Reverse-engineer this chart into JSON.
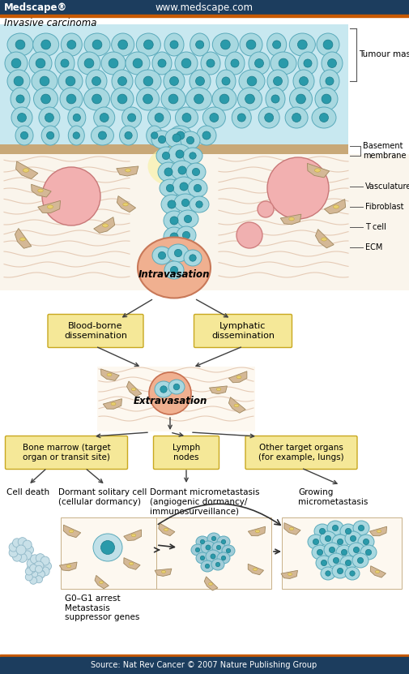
{
  "title_bar_color": "#1c3d5e",
  "title_bar_text": "Medscape®",
  "title_bar_url": "www.medscape.com",
  "bottom_bar_color": "#1c3d5e",
  "bottom_bar_text": "Source: Nat Rev Cancer © 2007 Nature Publishing Group",
  "orange_bar_color": "#c85a00",
  "heading": "Invasive carcinoma",
  "bg_color": "#ffffff",
  "tumour_mass_label": "Tumour mass",
  "basement_membrane_label": "Basement\nmembrane",
  "vasculature_label": "Vasculature",
  "fibroblast_label": "Fibroblast",
  "tcell_label": "T cell",
  "ecm_label": "ECM",
  "intravasation_label": "Intravasation",
  "blood_borne_label": "Blood-borne\ndissemination",
  "lymphatic_label": "Lymphatic\ndissemination",
  "extravasation_label": "Extravasation",
  "bone_marrow_label": "Bone marrow (target\norgan or transit site)",
  "lymph_nodes_label": "Lymph\nnodes",
  "other_organs_label": "Other target organs\n(for example, lungs)",
  "cell_death_label": "Cell death",
  "dormant_solitary_label": "Dormant solitary cell\n(cellular dormancy)",
  "dormant_micro_label": "Dormant micrometastasis\n(angiogenic dormancy/\nimmunosurveillance)",
  "growing_micro_label": "Growing\nmicrometastasis",
  "g0g1_label": "G0–G1 arrest\nMetastasis\nsuppressor genes",
  "cancer_cell_color": "#a8d8e0",
  "cancer_cell_edge": "#5aaabb",
  "cancer_cell_nucleus_color": "#2a9aaa",
  "cancer_cell_nucleus_edge": "#1a7a8a",
  "fibroblast_color": "#d4b896",
  "fibroblast_edge": "#a08860",
  "fibroblast_nuc_color": "#e8d070",
  "vessel_color": "#f0aaaa",
  "vessel_edge": "#c07070",
  "tcell_color": "#f0b0b0",
  "tcell_edge": "#d08080",
  "ecm_bg_color": "#fdf8f0",
  "ecm_line_color": "#e8c8b0",
  "stroma_bg": "#faf5ec",
  "bm_color": "#c8a878",
  "intra_color": "#f0b090",
  "intra_edge": "#c87050",
  "yellow_bg": "#f5f0c0",
  "box_fill": "#f5e898",
  "box_edge": "#c8a820",
  "cell_death_color": "#c8e0e8",
  "cell_death_edge": "#90b8c8",
  "white": "#ffffff"
}
